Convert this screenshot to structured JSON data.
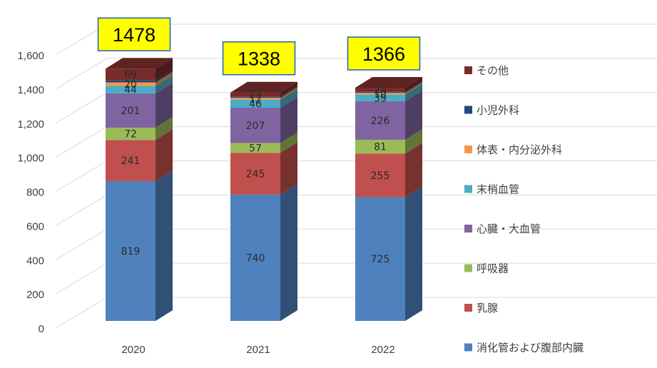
{
  "chart_data": {
    "type": "bar",
    "stacked": true,
    "three_d": true,
    "categories": [
      "2020",
      "2021",
      "2022"
    ],
    "ylim": [
      0,
      1600
    ],
    "yticks": [
      0,
      200,
      400,
      600,
      800,
      1000,
      1200,
      1400,
      1600
    ],
    "ytick_labels": [
      "0",
      "200",
      "400",
      "600",
      "800",
      "1,000",
      "1,200",
      "1,400",
      "1,600"
    ],
    "grid": true,
    "legend_position": "right",
    "totals": [
      1478,
      1338,
      1366
    ],
    "totals_labels": [
      "1478",
      "1338",
      "1366"
    ],
    "total_box_fill": "#ffff00",
    "total_box_border": "#1f5fbf",
    "series": [
      {
        "name": "消化管および腹部内臓",
        "color": "#4f81bd",
        "values": [
          819,
          740,
          725
        ],
        "labels": [
          "819",
          "740",
          "725"
        ]
      },
      {
        "name": "乳腺",
        "color": "#c0504d",
        "values": [
          241,
          245,
          255
        ],
        "labels": [
          "241",
          "245",
          "255"
        ]
      },
      {
        "name": "呼吸器",
        "color": "#9bbb59",
        "values": [
          72,
          57,
          81
        ],
        "labels": [
          "72",
          "57",
          "81"
        ]
      },
      {
        "name": "心臓・大血管",
        "color": "#8064a2",
        "values": [
          201,
          207,
          226
        ],
        "labels": [
          "201",
          "207",
          "226"
        ]
      },
      {
        "name": "末梢血管",
        "color": "#4bacc6",
        "values": [
          44,
          46,
          39
        ],
        "labels": [
          "44",
          "46",
          "39"
        ]
      },
      {
        "name": "体表・内分泌外科",
        "color": "#f79646",
        "values": [
          20,
          12,
          10
        ],
        "labels": [
          "20",
          "12",
          "10"
        ]
      },
      {
        "name": "小児外科",
        "color": "#1f497d",
        "values": [
          12,
          8,
          6
        ],
        "labels": [
          "",
          "",
          ""
        ]
      },
      {
        "name": "その他",
        "color": "#772c2a",
        "values": [
          69,
          23,
          24
        ],
        "labels": [
          "69",
          "23",
          "24"
        ]
      }
    ]
  }
}
